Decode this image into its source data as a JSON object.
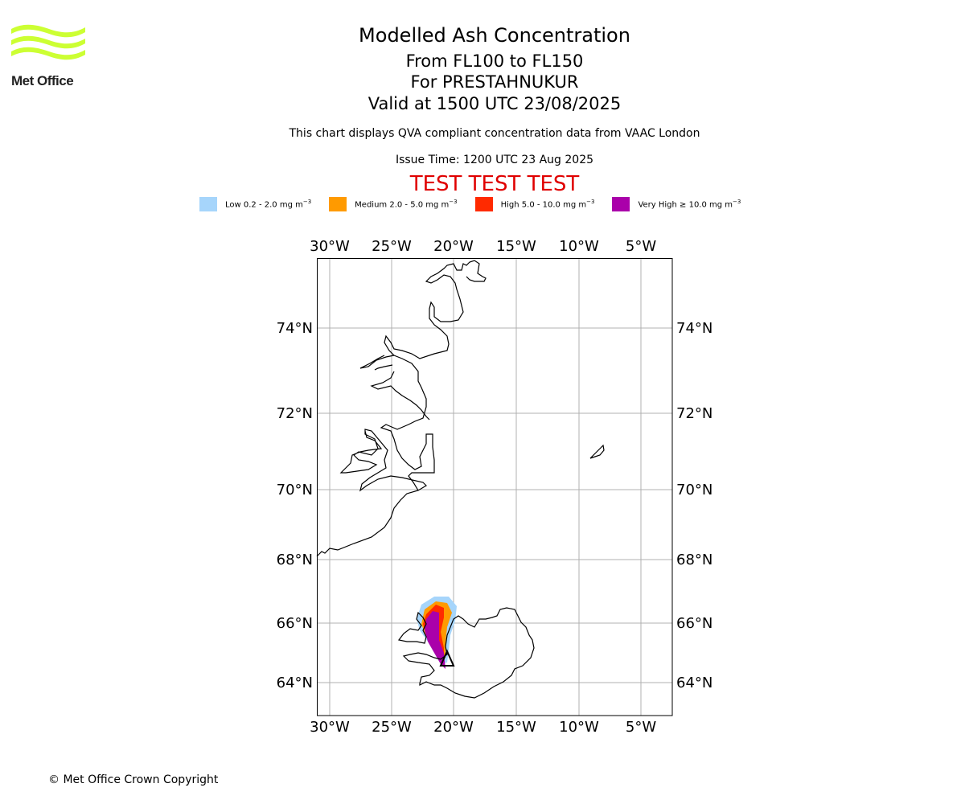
{
  "header": {
    "title": "Modelled Ash Concentration",
    "subtitle_levels": "From FL100 to FL150",
    "subtitle_volcano": "For PRESTAHNUKUR",
    "subtitle_valid": "Valid at 1500 UTC 23/08/2025",
    "description": "This chart displays QVA compliant concentration data from VAAC London",
    "issue_time": "Issue Time: 1200 UTC 23 Aug 2025",
    "test_banner": "TEST TEST TEST"
  },
  "logo": {
    "text": "Met Office",
    "color": "#ccff33",
    "icon": "met-office-waves-icon"
  },
  "legend": [
    {
      "label": "Low 0.2 - 2.0 mg m",
      "exp": "−3",
      "color": "#a6d5fb"
    },
    {
      "label": "Medium 2.0 - 5.0 mg m",
      "exp": "−3",
      "color": "#ff9a00"
    },
    {
      "label": "High 5.0 - 10.0 mg m",
      "exp": "−3",
      "color": "#ff2a00"
    },
    {
      "label": "Very High ≥ 10.0 mg m",
      "exp": "−3",
      "color": "#aa00aa"
    }
  ],
  "map": {
    "lon_ticks": [
      "30°W",
      "25°W",
      "20°W",
      "15°W",
      "10°W",
      "5°W"
    ],
    "lat_ticks": [
      "74°N",
      "72°N",
      "70°N",
      "68°N",
      "66°N",
      "64°N"
    ],
    "volcano_marker": "triangle",
    "grid": true
  },
  "footer": {
    "copyright": "© Met Office Crown Copyright"
  }
}
